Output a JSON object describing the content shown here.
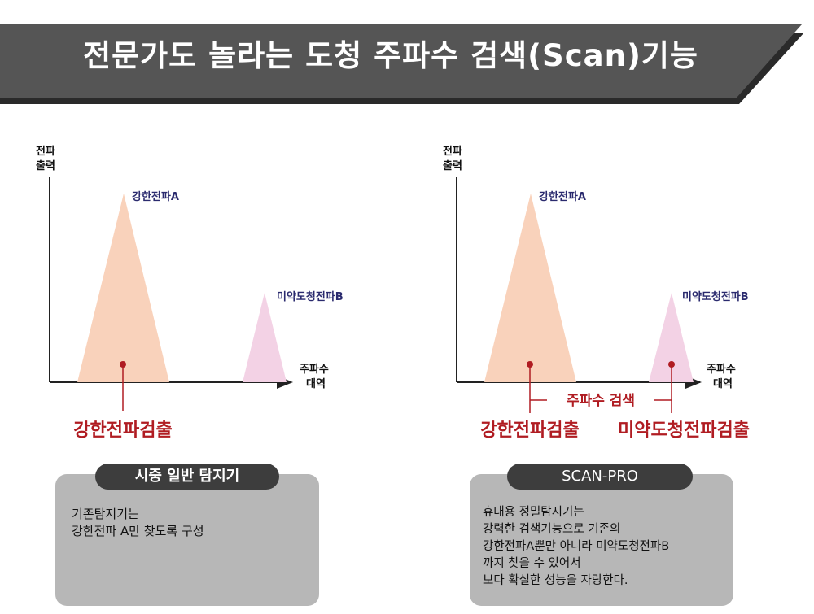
{
  "banner": {
    "title": "전문가도 놀라는 도청 주파수 검색(Scan)기능"
  },
  "left_diagram": {
    "y_axis_label": [
      "전파",
      "출력"
    ],
    "x_axis_label": [
      "주파수",
      "대역"
    ],
    "peak_a_label": "강한전파A",
    "peak_b_label": "미약도청전파B",
    "detection_label": "강한전파검출"
  },
  "right_diagram": {
    "y_axis_label": [
      "전파",
      "출력"
    ],
    "x_axis_label": [
      "주파수",
      "대역"
    ],
    "peak_a_label": "강한전파A",
    "peak_b_label": "미약도청전파B",
    "scan_label": "주파수 검색",
    "detection_a_label": "강한전파검출",
    "detection_b_label": "미약도청전파검출"
  },
  "left_box": {
    "title": "시중 일반 탐지기",
    "text": "기존탐지기는\n강한전파 A만 찾도록 구성"
  },
  "right_box": {
    "title": "SCAN-PRO",
    "text": "휴대용 정밀탐지기는\n강력한 검색기능으로 기존의\n강한전파A뿐만 아니라 미약도청전파B\n까지 찾을 수 있어서\n보다 확실한 성능을 자랑한다."
  },
  "colors": {
    "banner": "#555555",
    "peak_a": "#f9d2bb",
    "peak_b": "#f3d2e5",
    "detect": "#b01c22",
    "peak_label": "#2a2a6e"
  }
}
